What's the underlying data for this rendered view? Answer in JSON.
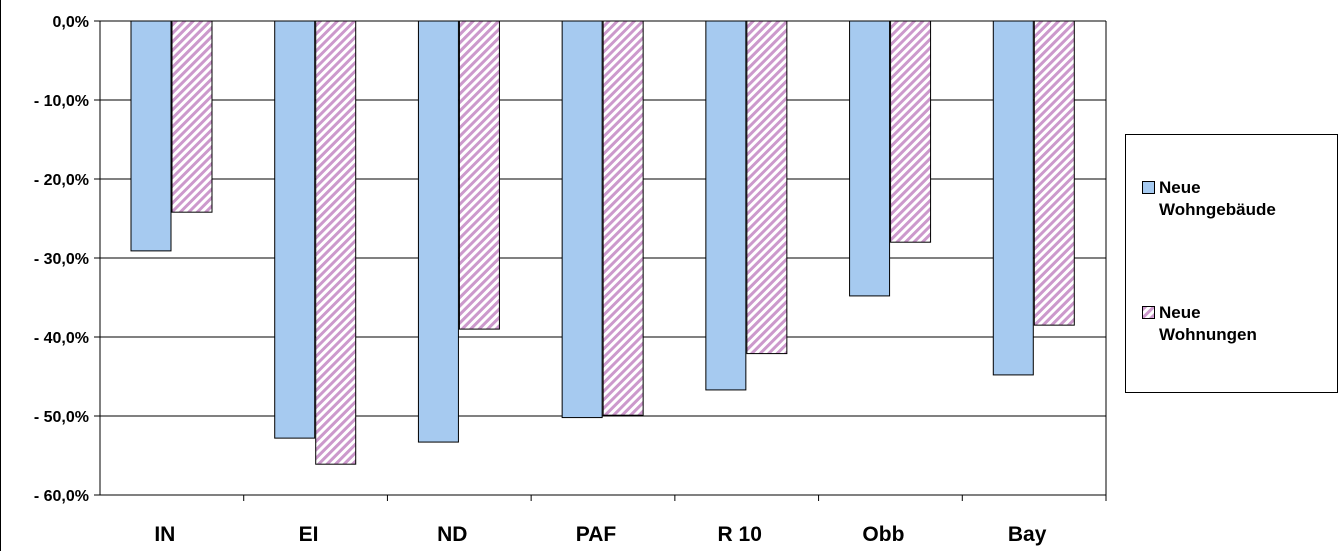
{
  "chart_data": {
    "type": "bar",
    "categories": [
      "IN",
      "EI",
      "ND",
      "PAF",
      "R 10",
      "Obb",
      "Bay"
    ],
    "series": [
      {
        "name": "Neue Wohngebäude",
        "values": [
          -29.1,
          -52.8,
          -53.3,
          -50.2,
          -46.7,
          -34.8,
          -44.8
        ],
        "color": "#a6caf0"
      },
      {
        "name": "Neue Wohnungen",
        "values": [
          -24.2,
          -56.1,
          -39.0,
          -49.9,
          -42.1,
          -28.0,
          -38.5
        ],
        "color": "#cc99cc",
        "pattern": "diagonal-hatch"
      }
    ],
    "y_tick_labels": [
      "0,0%",
      "- 10,0%",
      "- 20,0%",
      "- 30,0%",
      "- 40,0%",
      "- 50,0%",
      "- 60,0%"
    ],
    "ylim": [
      -60,
      0
    ],
    "title": "",
    "xlabel": "",
    "ylabel": "",
    "grid": true,
    "legend": {
      "placement": "right",
      "entries": [
        {
          "line1": "Neue",
          "line2": "Wohngebäude"
        },
        {
          "line1": "Neue",
          "line2": "Wohnungen"
        }
      ]
    }
  }
}
